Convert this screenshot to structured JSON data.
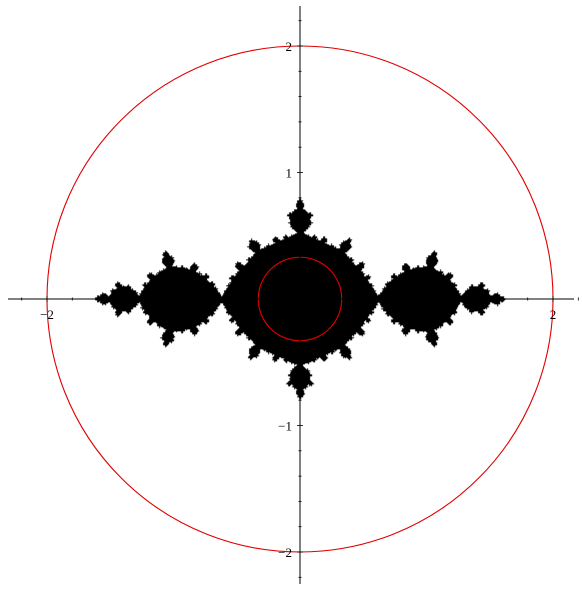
{
  "chart_data": {
    "type": "scatter",
    "title": "",
    "xlabel": "",
    "ylabel": "",
    "xlim": [
      -2.25,
      2.25
    ],
    "ylim": [
      -2.25,
      2.25
    ],
    "grid": false,
    "legend": "none",
    "x_ticks": [
      -2,
      2
    ],
    "x_tick_labels": [
      "−2",
      "2"
    ],
    "y_ticks": [
      -2,
      -1,
      1,
      2
    ],
    "y_tick_labels": [
      "−2",
      "−1",
      "1",
      "2"
    ],
    "circles": [
      {
        "center": [
          0,
          0
        ],
        "radius": 2.0,
        "color": "#e00000"
      },
      {
        "center": [
          0,
          0
        ],
        "radius": 0.33,
        "color": "#e00000"
      }
    ],
    "filled_set": {
      "description_type": "julia_set",
      "c": [
        -1.0,
        0.0
      ],
      "color": "#000000",
      "x_extent": [
        -1.62,
        1.62
      ],
      "y_extent": [
        -0.78,
        0.78
      ]
    }
  }
}
